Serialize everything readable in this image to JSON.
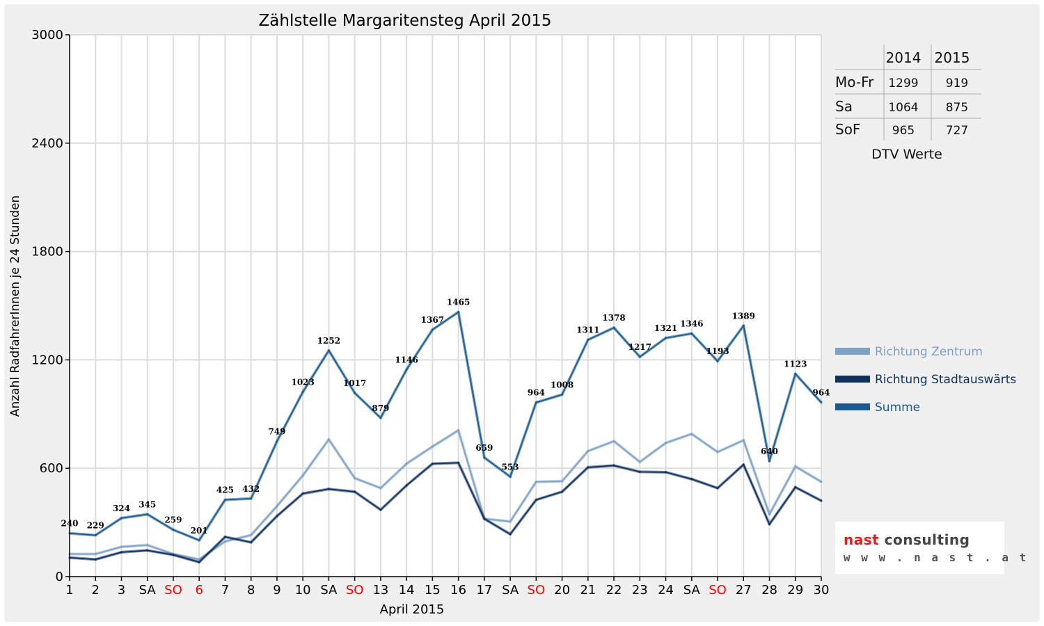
{
  "chart_data": {
    "type": "line",
    "title": "Zählstelle Margaritensteg April 2015",
    "xlabel": "April 2015",
    "ylabel": "Anzahl RadfahrerInnen je 24 Stunden",
    "ylim": [
      0,
      3000
    ],
    "yticks": [
      "0",
      "600",
      "1200",
      "1800",
      "2400",
      "3000"
    ],
    "grid": true,
    "legend_position": "right",
    "categories": [
      "1",
      "2",
      "3",
      "SA",
      "SO",
      "6",
      "7",
      "8",
      "9",
      "10",
      "SA",
      "SO",
      "13",
      "14",
      "15",
      "16",
      "17",
      "SA",
      "SO",
      "20",
      "21",
      "22",
      "23",
      "24",
      "SA",
      "SO",
      "27",
      "28",
      "29",
      "30"
    ],
    "category_colors": [
      "#000000",
      "#000000",
      "#000000",
      "#000000",
      "#ff0000",
      "#ff0000",
      "#000000",
      "#000000",
      "#000000",
      "#000000",
      "#000000",
      "#ff0000",
      "#000000",
      "#000000",
      "#000000",
      "#000000",
      "#000000",
      "#000000",
      "#ff0000",
      "#000000",
      "#000000",
      "#000000",
      "#000000",
      "#000000",
      "#000000",
      "#ff0000",
      "#000000",
      "#000000",
      "#000000",
      "#000000"
    ],
    "series": [
      {
        "name": "Richtung Zentrum",
        "color": "#7ea1c4",
        "values": [
          125,
          125,
          165,
          175,
          125,
          95,
          195,
          230,
          390,
          560,
          760,
          545,
          490,
          625,
          720,
          810,
          320,
          305,
          525,
          528,
          695,
          750,
          635,
          740,
          790,
          690,
          755,
          345,
          610,
          525
        ]
      },
      {
        "name": "Richtung Stadtauswärts",
        "color": "#0f2f5c",
        "values": [
          105,
          95,
          135,
          145,
          120,
          80,
          220,
          190,
          335,
          460,
          485,
          470,
          370,
          505,
          625,
          630,
          320,
          235,
          425,
          470,
          605,
          615,
          580,
          578,
          540,
          490,
          620,
          290,
          495,
          420
        ]
      },
      {
        "name": "Summe",
        "color": "#1a5a8c",
        "values": [
          240,
          229,
          324,
          345,
          259,
          201,
          425,
          432,
          749,
          1023,
          1252,
          1017,
          879,
          1146,
          1367,
          1465,
          659,
          553,
          964,
          1008,
          1311,
          1378,
          1217,
          1321,
          1346,
          1193,
          1389,
          640,
          1123,
          964
        ]
      }
    ],
    "data_labels": [
      "240",
      "229",
      "324",
      "345",
      "259",
      "201",
      "425",
      "432",
      "749",
      "1023",
      "1252",
      "1017",
      "879",
      "1146",
      "1367",
      "1465",
      "659",
      "553",
      "964",
      "1008",
      "1311",
      "1378",
      "1217",
      "1321",
      "1346",
      "1193",
      "1389",
      "640",
      "1123",
      "964"
    ]
  },
  "dtv_table": {
    "headers": [
      "",
      "2014",
      "2015"
    ],
    "rows": [
      [
        "Mo-Fr",
        "1299",
        "919"
      ],
      [
        "Sa",
        "1064",
        "875"
      ],
      [
        "SoF",
        "965",
        "727"
      ]
    ],
    "caption": "DTV Werte"
  },
  "logo": {
    "brand": "nast",
    "suffix": "consulting",
    "url_text": "w w w . n a s t . a t"
  }
}
